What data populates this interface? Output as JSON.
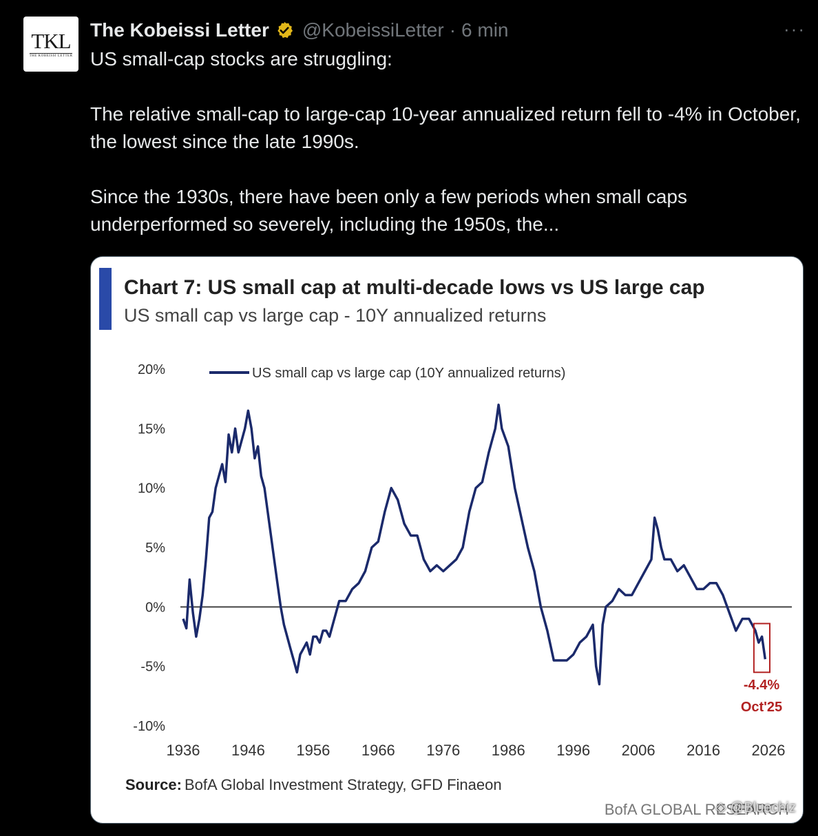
{
  "tweet": {
    "author_name": "The Kobeissi Letter",
    "handle": "@KobeissiLetter",
    "separator": "·",
    "time": "6 min",
    "more_label": "···",
    "avatar_text": "TKL",
    "avatar_subtext": "THE KOBEISSI LETTER",
    "paragraphs": [
      "US small-cap stocks are struggling:",
      "The relative small-cap to large-cap 10-year annualized return fell to -4% in October, the lowest since the late 1990s.",
      "Since the 1930s, there have been only a few periods when small caps underperformed so severely, including the 1950s, the..."
    ]
  },
  "icons": {
    "verified": "verified-badge-icon",
    "more": "more-horizontal-icon"
  },
  "colors": {
    "background": "#000000",
    "text": "#e7e9ea",
    "muted": "#71767b",
    "badge": "#e2b719",
    "chart_line": "#1b2a6b",
    "chart_accent": "#2a4aa8",
    "highlight": "#b22222"
  },
  "watermark": "◈ @Bluechiz",
  "chart_data": {
    "type": "line",
    "title": "Chart 7: US small cap at multi-decade lows vs US large cap",
    "subtitle": "US small cap vs large cap - 10Y annualized returns",
    "legend": "US small cap vs large cap (10Y annualized returns)",
    "legend_position": "top-left",
    "source_label": "Source:",
    "source_text": "BofA Global Investment Strategy, GFD Finaeon",
    "brand": "BofA GLOBAL RESEARCH",
    "annotation_value": "-4.4%",
    "annotation_date": "Oct'25",
    "x_ticks": [
      "1936",
      "1946",
      "1956",
      "1966",
      "1976",
      "1986",
      "1996",
      "2006",
      "2016",
      "2026"
    ],
    "y_ticks": [
      "20%",
      "15%",
      "10%",
      "5%",
      "0%",
      "-5%",
      "-10%"
    ],
    "xlim": [
      1936,
      2026
    ],
    "ylim": [
      -10,
      20
    ],
    "grid": false,
    "reference_line": 0,
    "series": [
      {
        "name": "US small cap vs large cap (10Y annualized returns)",
        "x": [
          1936.0,
          1936.5,
          1937.0,
          1937.5,
          1938.0,
          1938.5,
          1939.0,
          1939.5,
          1940.0,
          1940.5,
          1941.0,
          1941.5,
          1942.0,
          1942.5,
          1943.0,
          1943.5,
          1944.0,
          1944.5,
          1945.0,
          1945.5,
          1946.0,
          1946.5,
          1947.0,
          1947.5,
          1948.0,
          1948.5,
          1949.0,
          1949.5,
          1950.0,
          1950.5,
          1951.0,
          1951.5,
          1952.0,
          1952.5,
          1953.0,
          1953.5,
          1954.0,
          1954.5,
          1955.0,
          1955.5,
          1956.0,
          1956.5,
          1957.0,
          1957.5,
          1958.0,
          1958.5,
          1959.0,
          1960.0,
          1961.0,
          1962.0,
          1963.0,
          1964.0,
          1965.0,
          1966.0,
          1967.0,
          1968.0,
          1969.0,
          1970.0,
          1971.0,
          1972.0,
          1973.0,
          1974.0,
          1975.0,
          1976.0,
          1977.0,
          1978.0,
          1979.0,
          1980.0,
          1981.0,
          1982.0,
          1983.0,
          1984.0,
          1984.5,
          1985.0,
          1986.0,
          1987.0,
          1988.0,
          1989.0,
          1990.0,
          1991.0,
          1992.0,
          1993.0,
          1994.0,
          1995.0,
          1996.0,
          1997.0,
          1998.0,
          1999.0,
          1999.5,
          2000.0,
          2000.5,
          2001.0,
          2002.0,
          2003.0,
          2004.0,
          2005.0,
          2006.0,
          2007.0,
          2008.0,
          2008.5,
          2009.0,
          2009.5,
          2010.0,
          2011.0,
          2012.0,
          2013.0,
          2014.0,
          2015.0,
          2016.0,
          2017.0,
          2018.0,
          2019.0,
          2020.0,
          2021.0,
          2022.0,
          2023.0,
          2024.0,
          2024.5,
          2025.0,
          2025.5
        ],
        "y": [
          -1.0,
          -1.8,
          2.3,
          -0.5,
          -2.5,
          -1.0,
          1.0,
          4.0,
          7.5,
          8.0,
          10.0,
          11.0,
          12.0,
          10.5,
          14.5,
          13.0,
          15.0,
          13.0,
          14.0,
          15.0,
          16.5,
          15.0,
          12.5,
          13.5,
          11.0,
          10.0,
          8.0,
          6.0,
          4.0,
          2.0,
          0.0,
          -1.5,
          -2.5,
          -3.5,
          -4.5,
          -5.5,
          -4.0,
          -3.5,
          -3.0,
          -4.0,
          -2.5,
          -2.5,
          -3.0,
          -2.0,
          -2.0,
          -2.5,
          -1.5,
          0.5,
          0.5,
          1.5,
          2.0,
          3.0,
          5.0,
          5.5,
          8.0,
          10.0,
          9.0,
          7.0,
          6.0,
          6.0,
          4.0,
          3.0,
          3.5,
          3.0,
          3.5,
          4.0,
          5.0,
          8.0,
          10.0,
          10.5,
          13.0,
          15.0,
          17.0,
          15.0,
          13.5,
          10.0,
          7.5,
          5.0,
          3.0,
          0.0,
          -2.0,
          -4.5,
          -4.5,
          -4.5,
          -4.0,
          -3.0,
          -2.5,
          -1.5,
          -5.0,
          -6.5,
          -1.5,
          0.0,
          0.5,
          1.5,
          1.0,
          1.0,
          2.0,
          3.0,
          4.0,
          7.5,
          6.5,
          5.0,
          4.0,
          4.0,
          3.0,
          3.5,
          2.5,
          1.5,
          1.5,
          2.0,
          2.0,
          1.0,
          -0.5,
          -2.0,
          -1.0,
          -1.0,
          -2.0,
          -3.0,
          -2.5,
          -4.4
        ]
      }
    ]
  }
}
